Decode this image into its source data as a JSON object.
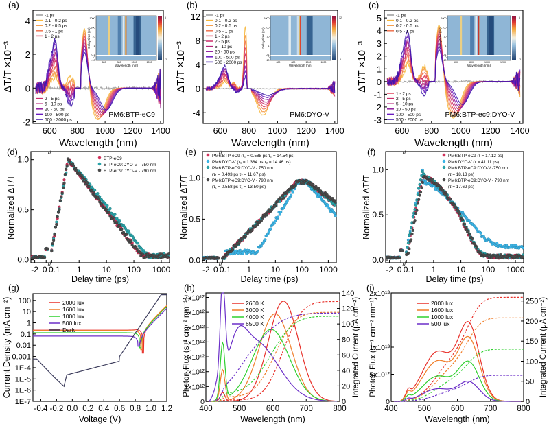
{
  "chart_data": [
    {
      "id": "a",
      "panel_label": "(a)",
      "type": "line",
      "title": "",
      "xlabel": "Wavelength (nm)",
      "ylabel": "ΔT/T ×10⁻³",
      "xlim": [
        480,
        1420
      ],
      "ylim": [
        -2.1,
        4.6
      ],
      "xticks": [
        600,
        800,
        1000,
        1200,
        1400
      ],
      "yticks": [
        -2,
        0,
        2,
        4
      ],
      "annotation": "PM6:BTP-eC9",
      "legend_top": [
        "-1 ps",
        "0.1 - 0.2 ps",
        "0.2 - 0.5 ps",
        "0.5 - 1 ps",
        "1 - 2 ps"
      ],
      "legend_bottom": [
        "2 - 5 ps",
        "5 - 10 ps",
        "20 - 50 ps",
        "100 - 500 ps",
        "500 - 2000 ps"
      ],
      "series_colors": [
        "#9a9a9a",
        "#f6b73c",
        "#f59a45",
        "#f0734f",
        "#e0425a",
        "#cc2c69",
        "#b42276",
        "#8e1b9c",
        "#6a1bc0",
        "#3c16a8"
      ],
      "peaks": {
        "pia_660": [
          0.3,
          2.7
        ],
        "gsb_850": [
          2.1,
          3.9
        ],
        "sb_1000": [
          -1.9,
          -1.1
        ]
      },
      "inset": {
        "xlabel": "Wavelength (nm)",
        "ylabel": "Delay time (ps)",
        "yticks": [
          "-10",
          "0",
          "0.1",
          "1",
          "10",
          "100",
          "1000"
        ],
        "xticks": [
          "600",
          "800",
          "1000",
          "1200"
        ],
        "colorbar_label": "ΔT/T ×10⁻³",
        "colorbar_range": [
          -2,
          5
        ]
      }
    },
    {
      "id": "b",
      "panel_label": "(b)",
      "type": "line",
      "xlabel": "Wavelength (nm)",
      "ylabel": "ΔT/T ×10⁻³",
      "xlim": [
        480,
        1420
      ],
      "ylim": [
        -5.8,
        13
      ],
      "xticks": [
        600,
        800,
        1000,
        1200,
        1400
      ],
      "yticks": [
        -4,
        0,
        4,
        8,
        12
      ],
      "annotation": "PM6:DYO-V",
      "legend_top": [
        "-1 ps",
        "0.1 - 0.2 ps",
        "0.2 - 0.5 ps",
        "0.5 - 1 ps",
        "1 - 2 ps",
        "2 - 5 ps",
        "5 - 10 ps",
        "20 - 50 ps",
        "100 - 500 ps",
        "500 - 2000 ps"
      ],
      "legend_bottom": [],
      "series_colors": [
        "#9a9a9a",
        "#f6b73c",
        "#f59a45",
        "#f0734f",
        "#e0425a",
        "#cc2c69",
        "#b42276",
        "#8e1b9c",
        "#6a1bc0",
        "#3c16a8"
      ],
      "peaks": {
        "peak_775": [
          2.0,
          12.4
        ],
        "sb_900": [
          -5.2,
          -1.2
        ]
      },
      "inset": {
        "xlabel": "Wavelength (nm)",
        "ylabel": "Delay time (ps)",
        "yticks": [
          "-10",
          "0",
          "0.1",
          "1",
          "10",
          "100",
          "1000"
        ],
        "xticks": [
          "600",
          "800",
          "1000",
          "1200"
        ],
        "colorbar_label": "ΔT/T ×10⁻³",
        "colorbar_range": [
          -5,
          12
        ]
      }
    },
    {
      "id": "c",
      "panel_label": "(c)",
      "type": "line",
      "xlabel": "Wavelength (nm)",
      "ylabel": "ΔT/T ×10⁻³",
      "xlim": [
        480,
        1420
      ],
      "ylim": [
        -3.3,
        5.6
      ],
      "xticks": [
        600,
        800,
        1000,
        1200,
        1400
      ],
      "yticks": [
        -3,
        -2,
        -1,
        0,
        1,
        2,
        3,
        4,
        5
      ],
      "annotation": "PM6:BTP-ec9:DYO-V",
      "legend_top": [
        "-1 ps",
        "0.1 - 0.2 ps",
        "0.2 - 0.5 ps",
        "0.5 - 1 ps"
      ],
      "legend_bottom": [
        "1 - 2 ps",
        "2 - 5 ps",
        "5 - 10 ps",
        "20 - 50 ps",
        "100 - 500 ps",
        "500 - 2000 ps"
      ],
      "series_colors": [
        "#9a9a9a",
        "#f6b73c",
        "#f59a45",
        "#f0734f",
        "#e0425a",
        "#cc2c69",
        "#b42276",
        "#8e1b9c",
        "#6a1bc0",
        "#3c16a8"
      ],
      "peaks": {
        "pia_640": [
          1.0,
          3.8
        ],
        "gsb_850": [
          2.5,
          5.0
        ],
        "sb_1000": [
          -3.0,
          -1.6
        ]
      },
      "inset": {
        "xlabel": "Wavelength (nm)",
        "ylabel": "Delay time (ps)",
        "yticks": [
          "-10",
          "0",
          "0.1",
          "1",
          "10",
          "100",
          "1000"
        ],
        "xticks": [
          "600",
          "800",
          "1000",
          "1200"
        ],
        "colorbar_label": "ΔT/T ×10⁻³",
        "colorbar_range": [
          -2,
          5
        ]
      }
    },
    {
      "id": "d",
      "panel_label": "(d)",
      "type": "scatter",
      "xlabel": "Delay time (ps)",
      "ylabel": "Normalized ΔT/T",
      "xticks": [
        "-2",
        "0",
        "0.1",
        "1",
        "10",
        "100",
        "1000"
      ],
      "yticks": [
        0.0,
        0.5,
        1.0
      ],
      "ylim": [
        -0.03,
        1.08
      ],
      "series": [
        {
          "name": "BTP-eC9",
          "color": "#d0315a",
          "rise_end": 0.4,
          "decay_half": 20
        },
        {
          "name": "BTP-eC9:DYO-V - 750 nm",
          "color": "#2aa3a8",
          "rise_end": 0.4,
          "decay_half": 40
        },
        {
          "name": "BTP-eC9:DYO-V - 790 nm",
          "color": "#4a4a4a",
          "rise_end": 0.4,
          "decay_half": 18
        }
      ]
    },
    {
      "id": "e",
      "panel_label": "(e)",
      "type": "scatter",
      "xlabel": "Delay time (ps)",
      "ylabel": "Normalized ΔT/T",
      "xticks": [
        "-2",
        "0",
        "0.1",
        "1",
        "10",
        "100",
        "1000"
      ],
      "yticks": [
        0.0,
        0.5,
        1.0
      ],
      "ylim": [
        -0.03,
        1.32
      ],
      "series": [
        {
          "name": "PM6:BTP-eC9",
          "fit": "(τ₁ = 0.588 ps τ₂ = 14.54 ps)",
          "color": "#d0315a"
        },
        {
          "name": "PM6:DYO-V",
          "fit": "(τ₁ = 1.384 ps τ₂ = 14.46 ps)",
          "color": "#3ab4e6"
        },
        {
          "name": "PM6:BTP-eC9:DYO-V - 750 nm",
          "fit": "(τ₁ = 0.493 ps τ₂ = 11.67 ps)",
          "color": "#2aa3a8"
        },
        {
          "name": "PM6:BTP-eC9:DYO-V - 790 nm",
          "fit": "(τ₁ = 0.558 ps τ₂ = 13.50 ps)",
          "color": "#4a4a4a"
        }
      ]
    },
    {
      "id": "f",
      "panel_label": "(f)",
      "type": "scatter",
      "xlabel": "Delay time (ps)",
      "ylabel": "Normalized ΔT/T",
      "xticks": [
        "-2",
        "0",
        "0.1",
        "1",
        "10",
        "100",
        "1000"
      ],
      "yticks": [
        0.0,
        0.5,
        1.0
      ],
      "ylim": [
        -0.03,
        1.2
      ],
      "series": [
        {
          "name": "PM6:BTP-eC9",
          "fit": "(τ = 17.12 ps)",
          "color": "#d0315a"
        },
        {
          "name": "PM6:DYO-V",
          "fit": "(τ = 41.11 ps)",
          "color": "#3ab4e6"
        },
        {
          "name": "PM6:BTP-eC9:DYO-V -750 nm",
          "fit": "(τ = 18.13 ps)",
          "color": "#2aa3a8"
        },
        {
          "name": "PM6:BTP-eC9:DYO-V - 790 nm",
          "fit": "(τ = 17.62 ps)",
          "color": "#4a4a4a"
        }
      ]
    },
    {
      "id": "g",
      "panel_label": "(g)",
      "type": "line",
      "xlabel": "Voltage (V)",
      "ylabel": "Current Density (mA cm⁻²)",
      "xlim": [
        -0.5,
        1.2
      ],
      "ylim_log10": [
        -7,
        2.6
      ],
      "xticks": [
        "-0.4",
        "-0.2",
        "0.0",
        "0.2",
        "0.4",
        "0.6",
        "0.8",
        "1.0",
        "1.2"
      ],
      "yticks": [
        "100",
        "10",
        "1",
        "0.1",
        "0.01",
        "0.001",
        "1E-4",
        "1E-5",
        "1E-6",
        "1E-7"
      ],
      "series": [
        {
          "name": "2000 lux",
          "color": "#e8302a",
          "jsc": 0.27,
          "voc": 0.9
        },
        {
          "name": "1600 lux",
          "color": "#f07d28",
          "jsc": 0.21,
          "voc": 0.88
        },
        {
          "name": "1000 lux",
          "color": "#2ed02e",
          "jsc": 0.13,
          "voc": 0.865
        },
        {
          "name": "500 lux",
          "color": "#6b2fc8",
          "jsc": 0.065,
          "voc": 0.845
        },
        {
          "name": "Dark",
          "color": "#3a3a5a"
        }
      ]
    },
    {
      "id": "h",
      "panel_label": "(h)",
      "type": "line",
      "xlabel": "Wavelength (nm)",
      "ylabel": "Photon Flux (s⁻¹ cm⁻² nm⁻¹)",
      "y2label": "Integrated Current (μA cm⁻²)",
      "xlim": [
        400,
        800
      ],
      "ylim": [
        0,
        7300000000000.0
      ],
      "y2lim": [
        0,
        140
      ],
      "xticks": [
        "400",
        "500",
        "600",
        "700",
        "800"
      ],
      "yticks": [
        "0",
        "1x10¹²",
        "2x10¹²",
        "3x10¹²",
        "4x10¹²",
        "5x10¹²",
        "6x10¹²",
        "7x10¹²"
      ],
      "y2ticks": [
        "0",
        "20",
        "40",
        "60",
        "80",
        "100",
        "120",
        "140"
      ],
      "series": [
        {
          "name": "2600 K",
          "color": "#e8302a",
          "blue_peak": 600000000000.0,
          "main_peak_nm": 632,
          "main_peak": 6750000000000.0,
          "integrated_final": 129
        },
        {
          "name": "3000 K",
          "color": "#f07d28",
          "blue_peak": 2100000000000.0,
          "main_peak_nm": 607,
          "main_peak": 5900000000000.0,
          "integrated_final": 115
        },
        {
          "name": "4000 K",
          "color": "#2ed02e",
          "blue_peak": 3800000000000.0,
          "main_peak_nm": 595,
          "main_peak": 4850000000000.0,
          "integrated_final": 110
        },
        {
          "name": "6500 K",
          "color": "#6b2fc8",
          "blue_peak": 6400000000000.0,
          "main_peak_nm": 545,
          "main_peak": 4050000000000.0,
          "integrated_final": 114
        }
      ]
    },
    {
      "id": "i",
      "panel_label": "(i)",
      "type": "line",
      "xlabel": "Wavelength (nm)",
      "ylabel": "Photon Flux (s⁻¹ cm⁻² nm⁻¹)",
      "y2label": "Integrated Current (μA cm⁻²)",
      "xlim": [
        400,
        800
      ],
      "ylim": [
        0,
        20000000000000.0
      ],
      "y2lim": [
        0,
        270
      ],
      "xticks": [
        "400",
        "500",
        "600",
        "700",
        "800"
      ],
      "yticks": [
        "0",
        "5x10¹²",
        "1x10¹³",
        "2x10¹³"
      ],
      "y2ticks": [
        "0",
        "50",
        "100",
        "150",
        "200",
        "250"
      ],
      "series": [
        {
          "name": "2000 lux",
          "color": "#e8302a",
          "main_peak": 18200000000000.0,
          "integrated_final": 259
        },
        {
          "name": "1600 lux",
          "color": "#f07d28",
          "main_peak": 14800000000000.0,
          "integrated_final": 208
        },
        {
          "name": "1000 lux",
          "color": "#2ed02e",
          "main_peak": 9200000000000.0,
          "integrated_final": 130
        },
        {
          "name": "500 lux",
          "color": "#6b2fc8",
          "main_peak": 4600000000000.0,
          "integrated_final": 65
        }
      ]
    }
  ]
}
